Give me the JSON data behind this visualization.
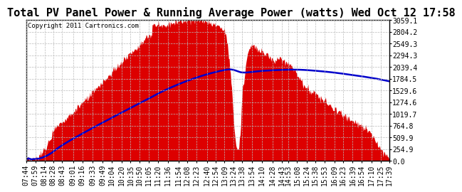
{
  "title": "Total PV Panel Power & Running Average Power (watts) Wed Oct 12 17:58",
  "copyright": "Copyright 2011 Cartronics.com",
  "y_max": 3059.1,
  "y_ticks": [
    0.0,
    254.9,
    509.9,
    764.8,
    1019.7,
    1274.6,
    1529.6,
    1784.5,
    2039.4,
    2294.3,
    2549.3,
    2804.2,
    3059.1
  ],
  "background_color": "#ffffff",
  "fill_color": "#dd0000",
  "avg_line_color": "#0000cc",
  "x_labels": [
    "07:44",
    "07:59",
    "08:14",
    "08:28",
    "08:43",
    "09:01",
    "09:16",
    "09:33",
    "09:49",
    "10:04",
    "10:20",
    "10:35",
    "10:50",
    "11:05",
    "11:20",
    "11:36",
    "11:54",
    "12:08",
    "12:23",
    "12:40",
    "12:54",
    "13:09",
    "13:24",
    "13:38",
    "13:54",
    "14:10",
    "14:28",
    "14:43",
    "14:53",
    "15:08",
    "15:24",
    "15:38",
    "15:53",
    "16:09",
    "16:23",
    "16:39",
    "16:54",
    "17:10",
    "17:25",
    "17:39"
  ],
  "title_fontsize": 11,
  "tick_fontsize": 7
}
